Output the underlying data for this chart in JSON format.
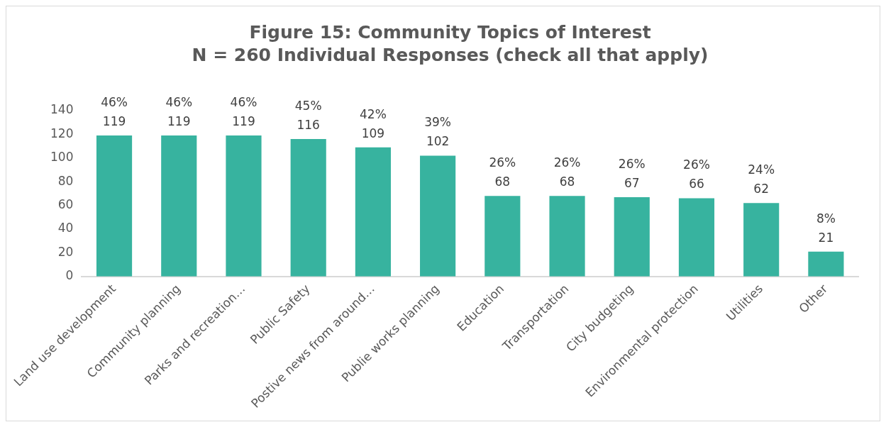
{
  "chart_data": {
    "type": "bar",
    "title": "Figure 15: Community Topics of Interest",
    "subtitle": "N = 260 Individual Responses (check all that apply)",
    "categories": [
      "Land use development",
      "Community planning",
      "Parks and recreation…",
      "Public Safety",
      "Postive news from around…",
      "Publie works planning",
      "Education",
      "Transportation",
      "City budgeting",
      "Environmental protection",
      "Utilities",
      "Other"
    ],
    "values": [
      119,
      119,
      119,
      116,
      109,
      102,
      68,
      68,
      67,
      66,
      62,
      21
    ],
    "value_labels": [
      "46%\n119",
      "46%\n119",
      "46%\n119",
      "45%\n116",
      "42%\n109",
      "39%\n102",
      "26%\n68",
      "26%\n68",
      "26%\n67",
      "26%\n66",
      "24%\n62",
      "8%\n21"
    ],
    "color": "#37b39f",
    "ylim": [
      0,
      140
    ],
    "yticks": [
      0,
      20,
      40,
      60,
      80,
      100,
      120,
      140
    ],
    "grid": false,
    "legend": false
  }
}
